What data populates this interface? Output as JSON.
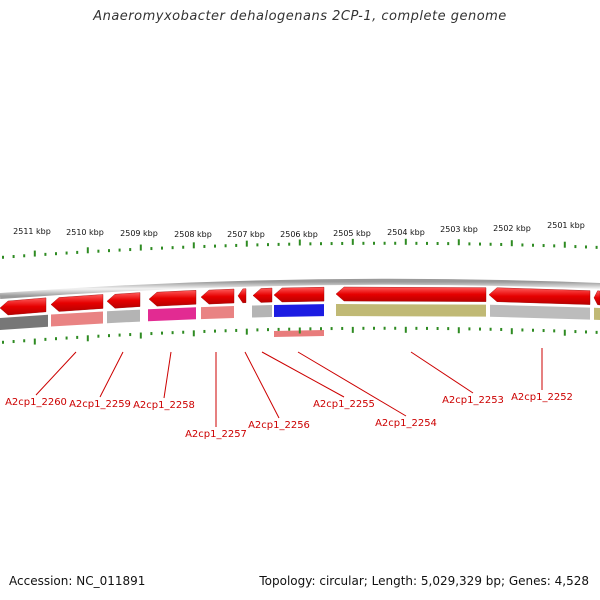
{
  "header": {
    "title": "Anaeromyxobacter dehalogenans 2CP-1, complete genome"
  },
  "footer": {
    "accession": "Accession: NC_011891",
    "summary": "Topology: circular; Length: 5,029,329 bp; Genes: 4,528"
  },
  "scale": {
    "tick_labels": [
      "2511 kbp",
      "2510 kbp",
      "2509 kbp",
      "2508 kbp",
      "2507 kbp",
      "2506 kbp",
      "2505 kbp",
      "2504 kbp",
      "2503 kbp",
      "2502 kbp",
      "2501 kbp"
    ]
  },
  "genes": [
    {
      "label": "A2cp1_2260",
      "strand": "-",
      "color": "#e60000",
      "func_color": "#707070"
    },
    {
      "label": "A2cp1_2259",
      "strand": "-",
      "color": "#e60000",
      "func_color": "#e87c7c"
    },
    {
      "label": "A2cp1_2258",
      "strand": "-",
      "color": "#e60000",
      "func_color": "#e0208c"
    },
    {
      "label": "A2cp1_2257",
      "strand": "-",
      "color": "#e60000",
      "func_color": "#e87c7c"
    },
    {
      "label": "A2cp1_2256",
      "strand": "-",
      "color": "#e60000",
      "func_color": "#b0b0b0"
    },
    {
      "label": "A2cp1_2255",
      "strand": "-",
      "color": "#e60000",
      "func_color": "#1010e0"
    },
    {
      "label": "A2cp1_2254",
      "strand": "-",
      "color": "#e60000",
      "func_color": "#bdb56e"
    },
    {
      "label": "A2cp1_2253",
      "strand": "-",
      "color": "#e60000",
      "func_color": "#bdb56e"
    },
    {
      "label": "A2cp1_2252",
      "strand": "-",
      "color": "#e60000",
      "func_color": "#b8b8b8"
    }
  ],
  "colors": {
    "gene": "#e60000",
    "backbone": "#8a8a8a",
    "tick": "#2e8b22",
    "label": "#cc0000",
    "leader": "#cc0000"
  }
}
